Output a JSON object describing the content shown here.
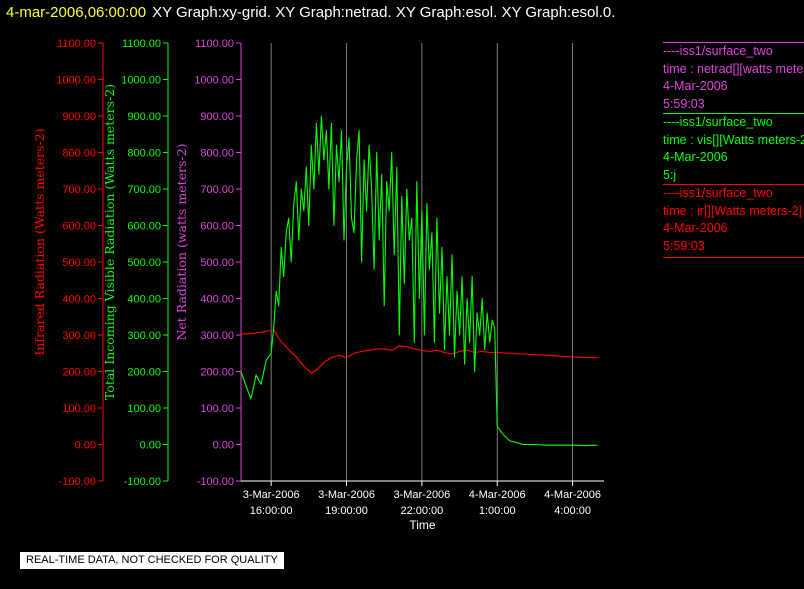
{
  "header": {
    "timestamp": "4-mar-2006,06:00:00",
    "graphs": "XY Graph:xy-grid.  XY Graph:netrad.  XY Graph:esol.  XY Graph:esol.0."
  },
  "legend": [
    {
      "line": "----iss1/surface_two",
      "var": "time : netrad[][watts meters-2]",
      "date": "4-Mar-2006",
      "time": "5:59:03",
      "color": "#dd44dd"
    },
    {
      "line": "----iss1/surface_two",
      "var": "time : vis[][Watts meters-2]",
      "date": "4-Mar-2006",
      "time": "5:j",
      "color": "#00ff00"
    },
    {
      "line": "----iss1/surface_two",
      "var": "time : ir[][Watts meters-2]",
      "date": "4-Mar-2006",
      "time": "5:59:03",
      "color": "#ff0000"
    }
  ],
  "disclaimer": "REAL-TIME DATA, NOT CHECKED FOR QUALITY",
  "chart_data": {
    "type": "line",
    "xlabel": "Time",
    "x_ticks": [
      {
        "x": 16,
        "date": "3-Mar-2006",
        "time": "16:00:00"
      },
      {
        "x": 19,
        "date": "3-Mar-2006",
        "time": "19:00:00"
      },
      {
        "x": 22,
        "date": "3-Mar-2006",
        "time": "22:00:00"
      },
      {
        "x": 25,
        "date": "4-Mar-2006",
        "time": "1:00:00"
      },
      {
        "x": 28,
        "date": "4-Mar-2006",
        "time": "4:00:00"
      }
    ],
    "xlim": [
      14.8,
      29.25
    ],
    "x_unit": "hours since 3-Mar-2006 00:00",
    "y_axes": [
      {
        "label": "Infrared Radiation (Watts meters-2)",
        "color": "#ff0000"
      },
      {
        "label": "Total Incoming Visible Radiation (Watts meters-2)",
        "color": "#00ff00"
      },
      {
        "label": "Net Radiation (watts meters-2)",
        "color": "#dd44dd"
      }
    ],
    "y_ticks": [
      "1100.00",
      "1000.00",
      "900.00",
      "800.00",
      "700.00",
      "600.00",
      "500.00",
      "400.00",
      "300.00",
      "200.00",
      "100.00",
      "0.00",
      "-100.00"
    ],
    "ylim": [
      -100,
      1100
    ],
    "grid": true,
    "series": [
      {
        "name": "ir",
        "color": "#ff0000",
        "x": [
          14.8,
          15.3,
          15.8,
          16.1,
          16.3,
          16.7,
          17.0,
          17.3,
          17.6,
          17.9,
          18.1,
          18.4,
          18.7,
          19.0,
          19.3,
          19.6,
          19.9,
          20.2,
          20.5,
          20.8,
          21.1,
          21.4,
          21.7,
          22.0,
          22.3,
          22.6,
          22.9,
          23.2,
          23.5,
          23.8,
          24.1,
          24.4,
          24.7,
          25.0,
          25.5,
          26.0,
          26.5,
          27.0,
          27.5,
          28.0,
          28.5,
          29.0
        ],
        "values": [
          302,
          305,
          310,
          315,
          290,
          260,
          240,
          215,
          195,
          210,
          225,
          238,
          245,
          238,
          250,
          255,
          258,
          262,
          262,
          258,
          270,
          268,
          262,
          258,
          255,
          258,
          252,
          248,
          255,
          258,
          252,
          255,
          252,
          252,
          250,
          248,
          246,
          245,
          242,
          240,
          238,
          238
        ]
      },
      {
        "name": "vis",
        "color": "#00ff00",
        "x": [
          14.8,
          15.0,
          15.2,
          15.4,
          15.6,
          15.8,
          16.0,
          16.1,
          16.2,
          16.3,
          16.4,
          16.5,
          16.6,
          16.7,
          16.8,
          16.9,
          17.0,
          17.1,
          17.2,
          17.3,
          17.4,
          17.5,
          17.6,
          17.7,
          17.8,
          17.9,
          18.0,
          18.1,
          18.2,
          18.3,
          18.4,
          18.5,
          18.6,
          18.7,
          18.8,
          18.9,
          19.0,
          19.1,
          19.2,
          19.3,
          19.4,
          19.5,
          19.6,
          19.7,
          19.8,
          19.9,
          20.0,
          20.1,
          20.2,
          20.3,
          20.4,
          20.5,
          20.6,
          20.7,
          20.8,
          20.9,
          21.0,
          21.1,
          21.2,
          21.3,
          21.4,
          21.5,
          21.6,
          21.7,
          21.8,
          21.9,
          22.0,
          22.1,
          22.2,
          22.3,
          22.4,
          22.5,
          22.6,
          22.7,
          22.8,
          22.9,
          23.0,
          23.1,
          23.2,
          23.3,
          23.4,
          23.5,
          23.6,
          23.7,
          23.8,
          23.9,
          24.0,
          24.1,
          24.2,
          24.3,
          24.4,
          24.5,
          24.6,
          24.7,
          24.8,
          24.9,
          25.0,
          25.2,
          25.5,
          25.8,
          26.0,
          26.5,
          27.0,
          27.5,
          28.0,
          28.5,
          29.0
        ],
        "values": [
          200,
          160,
          125,
          190,
          165,
          230,
          250,
          320,
          420,
          380,
          540,
          460,
          580,
          620,
          500,
          660,
          720,
          560,
          700,
          640,
          760,
          600,
          820,
          700,
          880,
          740,
          900,
          780,
          860,
          700,
          880,
          600,
          820,
          720,
          860,
          560,
          760,
          840,
          620,
          580,
          780,
          860,
          500,
          780,
          640,
          820,
          700,
          480,
          800,
          560,
          740,
          380,
          720,
          640,
          800,
          520,
          760,
          300,
          680,
          440,
          700,
          560,
          620,
          280,
          720,
          400,
          640,
          300,
          660,
          480,
          580,
          280,
          620,
          360,
          540,
          260,
          460,
          300,
          520,
          240,
          420,
          300,
          460,
          220,
          400,
          280,
          460,
          200,
          360,
          300,
          400,
          260,
          360,
          280,
          340,
          320,
          50,
          30,
          10,
          5,
          0,
          0,
          -2,
          -2,
          -2,
          -3,
          -2
        ]
      },
      {
        "name": "netrad",
        "color": "#dd44dd",
        "x": [],
        "values": []
      }
    ]
  }
}
